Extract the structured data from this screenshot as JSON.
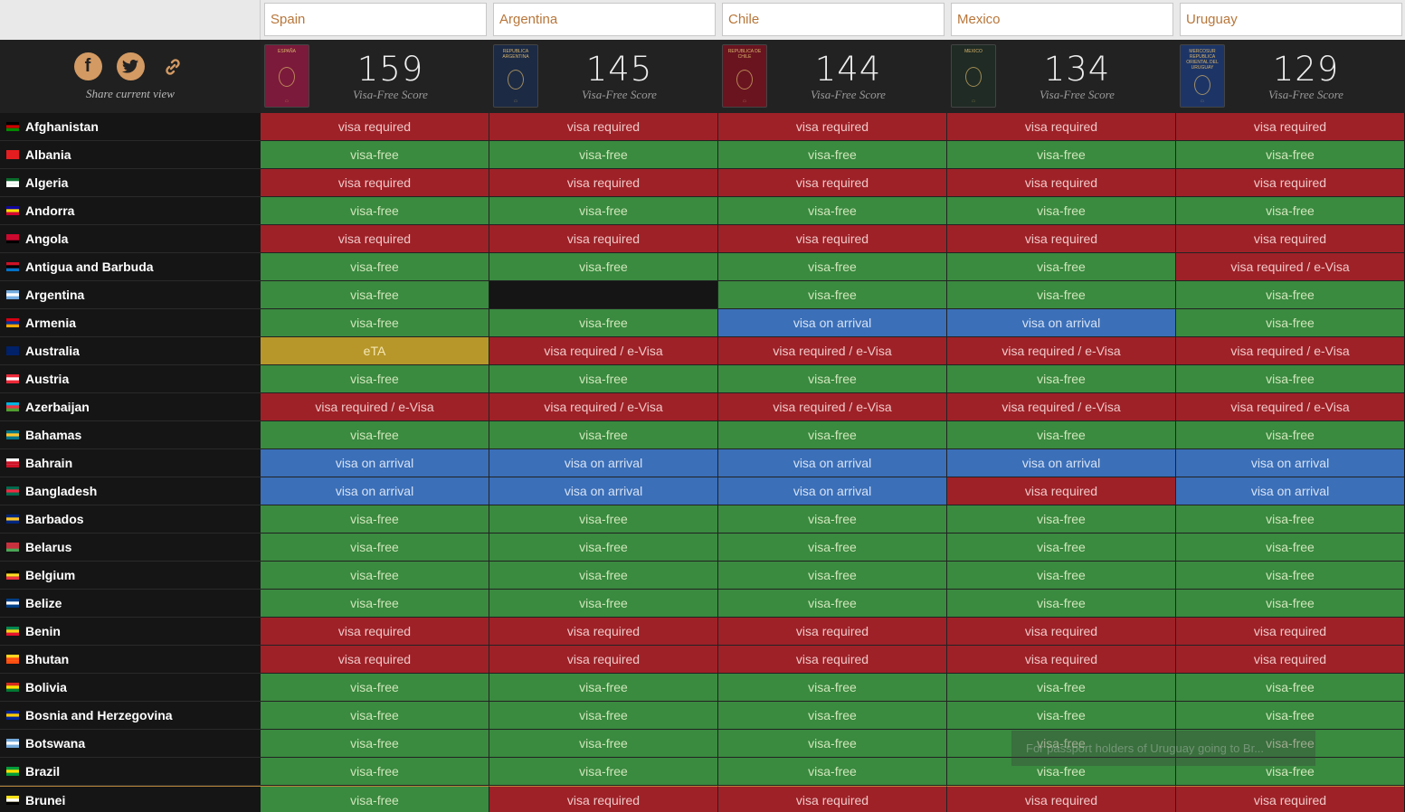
{
  "search": {
    "inputs": [
      "Spain",
      "Argentina",
      "Chile",
      "Mexico",
      "Uruguay"
    ]
  },
  "share": {
    "label": "Share current view",
    "icons": [
      "facebook-icon",
      "twitter-icon",
      "link-icon"
    ]
  },
  "passports": [
    {
      "country": "Spain",
      "score": "159",
      "score_label": "Visa-Free Score",
      "cover_color": "#7b1a3a",
      "cover_text": "ESPAÑA"
    },
    {
      "country": "Argentina",
      "score": "145",
      "score_label": "Visa-Free Score",
      "cover_color": "#1c2a44",
      "cover_text": "REPUBLICA ARGENTINA"
    },
    {
      "country": "Chile",
      "score": "144",
      "score_label": "Visa-Free Score",
      "cover_color": "#6a1420",
      "cover_text": "REPUBLICA DE CHILE"
    },
    {
      "country": "Mexico",
      "score": "134",
      "score_label": "Visa-Free Score",
      "cover_color": "#1f2b24",
      "cover_text": "MEXICO"
    },
    {
      "country": "Uruguay",
      "score": "129",
      "score_label": "Visa-Free Score",
      "cover_color": "#1d3566",
      "cover_text": "MERCOSUR REPUBLICA ORIENTAL DEL URUGUAY"
    }
  ],
  "statuses": {
    "vf": "visa-free",
    "vr": "visa required",
    "voa": "visa on arrival",
    "ev": "visa required / e-Visa",
    "eta": "eTA"
  },
  "colors": {
    "visa_free": "#3a8a40",
    "visa_required": "#9e2128",
    "visa_on_arrival": "#3b6fb8",
    "eta": "#b7972a"
  },
  "rows": [
    {
      "country": "Afghanistan",
      "flag": [
        "#000",
        "#c00",
        "#080"
      ],
      "cells": [
        "vr",
        "vr",
        "vr",
        "vr",
        "vr"
      ]
    },
    {
      "country": "Albania",
      "flag": [
        "#e41e20",
        "#e41e20",
        "#e41e20"
      ],
      "cells": [
        "vf",
        "vf",
        "vf",
        "vf",
        "vf"
      ]
    },
    {
      "country": "Algeria",
      "flag": [
        "#0a6b2c",
        "#fff",
        "#fff"
      ],
      "cells": [
        "vr",
        "vr",
        "vr",
        "vr",
        "vr"
      ]
    },
    {
      "country": "Andorra",
      "flag": [
        "#10069f",
        "#fedd00",
        "#d50032"
      ],
      "cells": [
        "vf",
        "vf",
        "vf",
        "vf",
        "vf"
      ]
    },
    {
      "country": "Angola",
      "flag": [
        "#cc092f",
        "#cc092f",
        "#000"
      ],
      "cells": [
        "vr",
        "vr",
        "vr",
        "vr",
        "vr"
      ]
    },
    {
      "country": "Antigua and Barbuda",
      "flag": [
        "#ce1126",
        "#000",
        "#0072c6"
      ],
      "cells": [
        "vf",
        "vf",
        "vf",
        "vf",
        "ev"
      ]
    },
    {
      "country": "Argentina",
      "flag": [
        "#74acdf",
        "#fff",
        "#74acdf"
      ],
      "cells": [
        "vf",
        "self",
        "vf",
        "vf",
        "vf"
      ]
    },
    {
      "country": "Armenia",
      "flag": [
        "#d90012",
        "#0033a0",
        "#f2a800"
      ],
      "cells": [
        "vf",
        "vf",
        "voa",
        "voa",
        "vf"
      ]
    },
    {
      "country": "Australia",
      "flag": [
        "#012169",
        "#012169",
        "#012169"
      ],
      "cells": [
        "eta",
        "ev",
        "ev",
        "ev",
        "ev"
      ]
    },
    {
      "country": "Austria",
      "flag": [
        "#ed2939",
        "#fff",
        "#ed2939"
      ],
      "cells": [
        "vf",
        "vf",
        "vf",
        "vf",
        "vf"
      ]
    },
    {
      "country": "Azerbaijan",
      "flag": [
        "#00b5e2",
        "#ef3340",
        "#509e2f"
      ],
      "cells": [
        "ev",
        "ev",
        "ev",
        "ev",
        "ev"
      ]
    },
    {
      "country": "Bahamas",
      "flag": [
        "#00778b",
        "#ffc72c",
        "#00778b"
      ],
      "cells": [
        "vf",
        "vf",
        "vf",
        "vf",
        "vf"
      ]
    },
    {
      "country": "Bahrain",
      "flag": [
        "#fff",
        "#ce1126",
        "#ce1126"
      ],
      "cells": [
        "voa",
        "voa",
        "voa",
        "voa",
        "voa"
      ]
    },
    {
      "country": "Bangladesh",
      "flag": [
        "#006a4e",
        "#f42a41",
        "#006a4e"
      ],
      "cells": [
        "voa",
        "voa",
        "voa",
        "vr",
        "voa"
      ]
    },
    {
      "country": "Barbados",
      "flag": [
        "#00267f",
        "#ffc726",
        "#00267f"
      ],
      "cells": [
        "vf",
        "vf",
        "vf",
        "vf",
        "vf"
      ]
    },
    {
      "country": "Belarus",
      "flag": [
        "#c8313e",
        "#c8313e",
        "#4aa657"
      ],
      "cells": [
        "vf",
        "vf",
        "vf",
        "vf",
        "vf"
      ]
    },
    {
      "country": "Belgium",
      "flag": [
        "#000",
        "#fdda24",
        "#ef3340"
      ],
      "cells": [
        "vf",
        "vf",
        "vf",
        "vf",
        "vf"
      ]
    },
    {
      "country": "Belize",
      "flag": [
        "#003f87",
        "#fff",
        "#003f87"
      ],
      "cells": [
        "vf",
        "vf",
        "vf",
        "vf",
        "vf"
      ]
    },
    {
      "country": "Benin",
      "flag": [
        "#008751",
        "#fcd116",
        "#e8112d"
      ],
      "cells": [
        "vr",
        "vr",
        "vr",
        "vr",
        "vr"
      ]
    },
    {
      "country": "Bhutan",
      "flag": [
        "#ffd520",
        "#ff4e12",
        "#ff4e12"
      ],
      "cells": [
        "vr",
        "vr",
        "vr",
        "vr",
        "vr"
      ]
    },
    {
      "country": "Bolivia",
      "flag": [
        "#d52b1e",
        "#f9e300",
        "#007934"
      ],
      "cells": [
        "vf",
        "vf",
        "vf",
        "vf",
        "vf"
      ]
    },
    {
      "country": "Bosnia and Herzegovina",
      "flag": [
        "#002395",
        "#fecb00",
        "#002395"
      ],
      "cells": [
        "vf",
        "vf",
        "vf",
        "vf",
        "vf"
      ]
    },
    {
      "country": "Botswana",
      "flag": [
        "#75aadb",
        "#fff",
        "#75aadb"
      ],
      "cells": [
        "vf",
        "vf",
        "vf",
        "vf",
        "vf"
      ]
    },
    {
      "country": "Brazil",
      "flag": [
        "#009c3b",
        "#ffdf00",
        "#009c3b"
      ],
      "cells": [
        "vf",
        "vf",
        "vf",
        "vf",
        "vf"
      ]
    },
    {
      "country": "Brunei",
      "flag": [
        "#f7e017",
        "#fff",
        "#000"
      ],
      "cells": [
        "vf",
        "vr",
        "vr",
        "vr",
        "vr"
      ]
    }
  ],
  "tooltip": "For passport holders of Uruguay going to Br..."
}
